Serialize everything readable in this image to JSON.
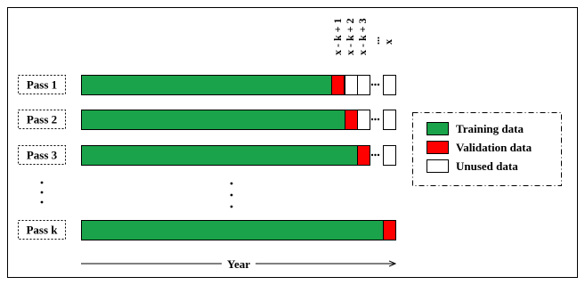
{
  "column_headers": [
    "x - k + 1",
    "x - k + 2",
    "x - k + 3",
    "...",
    "x"
  ],
  "passes": [
    {
      "label": "Pass 1",
      "validation_index": 0
    },
    {
      "label": "Pass 2",
      "validation_index": 1
    },
    {
      "label": "Pass 3",
      "validation_index": 2
    },
    {
      "label": "Pass k",
      "validation_index": 4
    }
  ],
  "vertical_ellipsis": "...",
  "axis_label": "Year",
  "legend": [
    {
      "label": "Training data",
      "color": "#1aa34a"
    },
    {
      "label": "Validation data",
      "color": "#ff0000"
    },
    {
      "label": "Unused data",
      "color": "#ffffff"
    }
  ],
  "colors": {
    "training": "#1aa34a",
    "validation": "#ff0000",
    "unused": "#ffffff",
    "border": "#000000"
  }
}
